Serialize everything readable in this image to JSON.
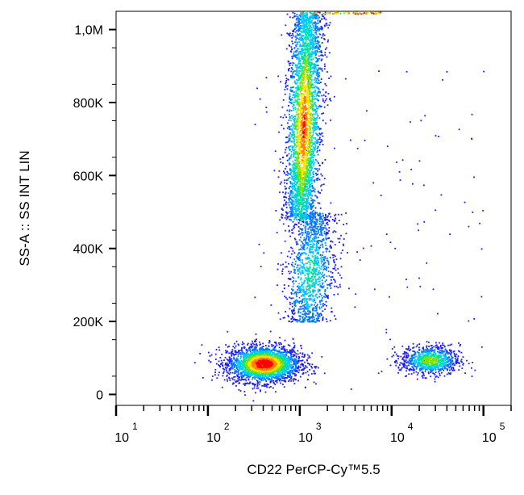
{
  "chart_data": {
    "type": "scatter",
    "subtype": "flow-cytometry density dot plot",
    "xlabel": "CD22 PerCP-Cy™5.5",
    "ylabel": "SS-A :: SS INT LIN",
    "x_scale": "log",
    "xlim": [
      10,
      200000
    ],
    "ylim": [
      -30000,
      1050000
    ],
    "x_major_ticks": [
      {
        "value": 10,
        "base": "10",
        "exp": "1"
      },
      {
        "value": 100,
        "base": "10",
        "exp": "2"
      },
      {
        "value": 1000,
        "base": "10",
        "exp": "3"
      },
      {
        "value": 10000,
        "base": "10",
        "exp": "4"
      },
      {
        "value": 100000,
        "base": "10",
        "exp": "5"
      }
    ],
    "y_ticks": [
      {
        "value": 0,
        "label": "0"
      },
      {
        "value": 200000,
        "label": "200K"
      },
      {
        "value": 400000,
        "label": "400K"
      },
      {
        "value": 600000,
        "label": "600K"
      },
      {
        "value": 800000,
        "label": "800K"
      },
      {
        "value": 1000000,
        "label": "1,0M"
      }
    ],
    "grid": false,
    "legend": "none",
    "colormap": [
      "#1a1aff",
      "#0077ff",
      "#00c8ff",
      "#00e0a0",
      "#7fe000",
      "#ffe000",
      "#ff8000",
      "#ff0000"
    ],
    "populations": [
      {
        "name": "CD22-negative low-SSC cluster",
        "x_center": 400,
        "x_spread_log10": 0.2,
        "y_center": 85000,
        "y_spread": 25000,
        "points": 2600,
        "peak_density": "high"
      },
      {
        "name": "high-SSC granulocyte band",
        "x_center": 1100,
        "x_spread_log10": 0.09,
        "y_range": [
          480000,
          1050000
        ],
        "points": 3400,
        "peak_density": "medium"
      },
      {
        "name": "intermediate SSC tail",
        "x_center": 1300,
        "x_spread_log10": 0.13,
        "y_range": [
          200000,
          500000
        ],
        "points": 1300,
        "peak_density": "low"
      },
      {
        "name": "CD22-positive B cell cluster",
        "x_center": 26000,
        "x_spread_log10": 0.16,
        "y_center": 95000,
        "y_spread": 20000,
        "points": 900,
        "peak_density": "medium"
      },
      {
        "name": "saturated events at top edge",
        "x_range": [
          1000,
          8000
        ],
        "y_value": 1050000,
        "points": 80,
        "peak_density": "high"
      }
    ]
  }
}
